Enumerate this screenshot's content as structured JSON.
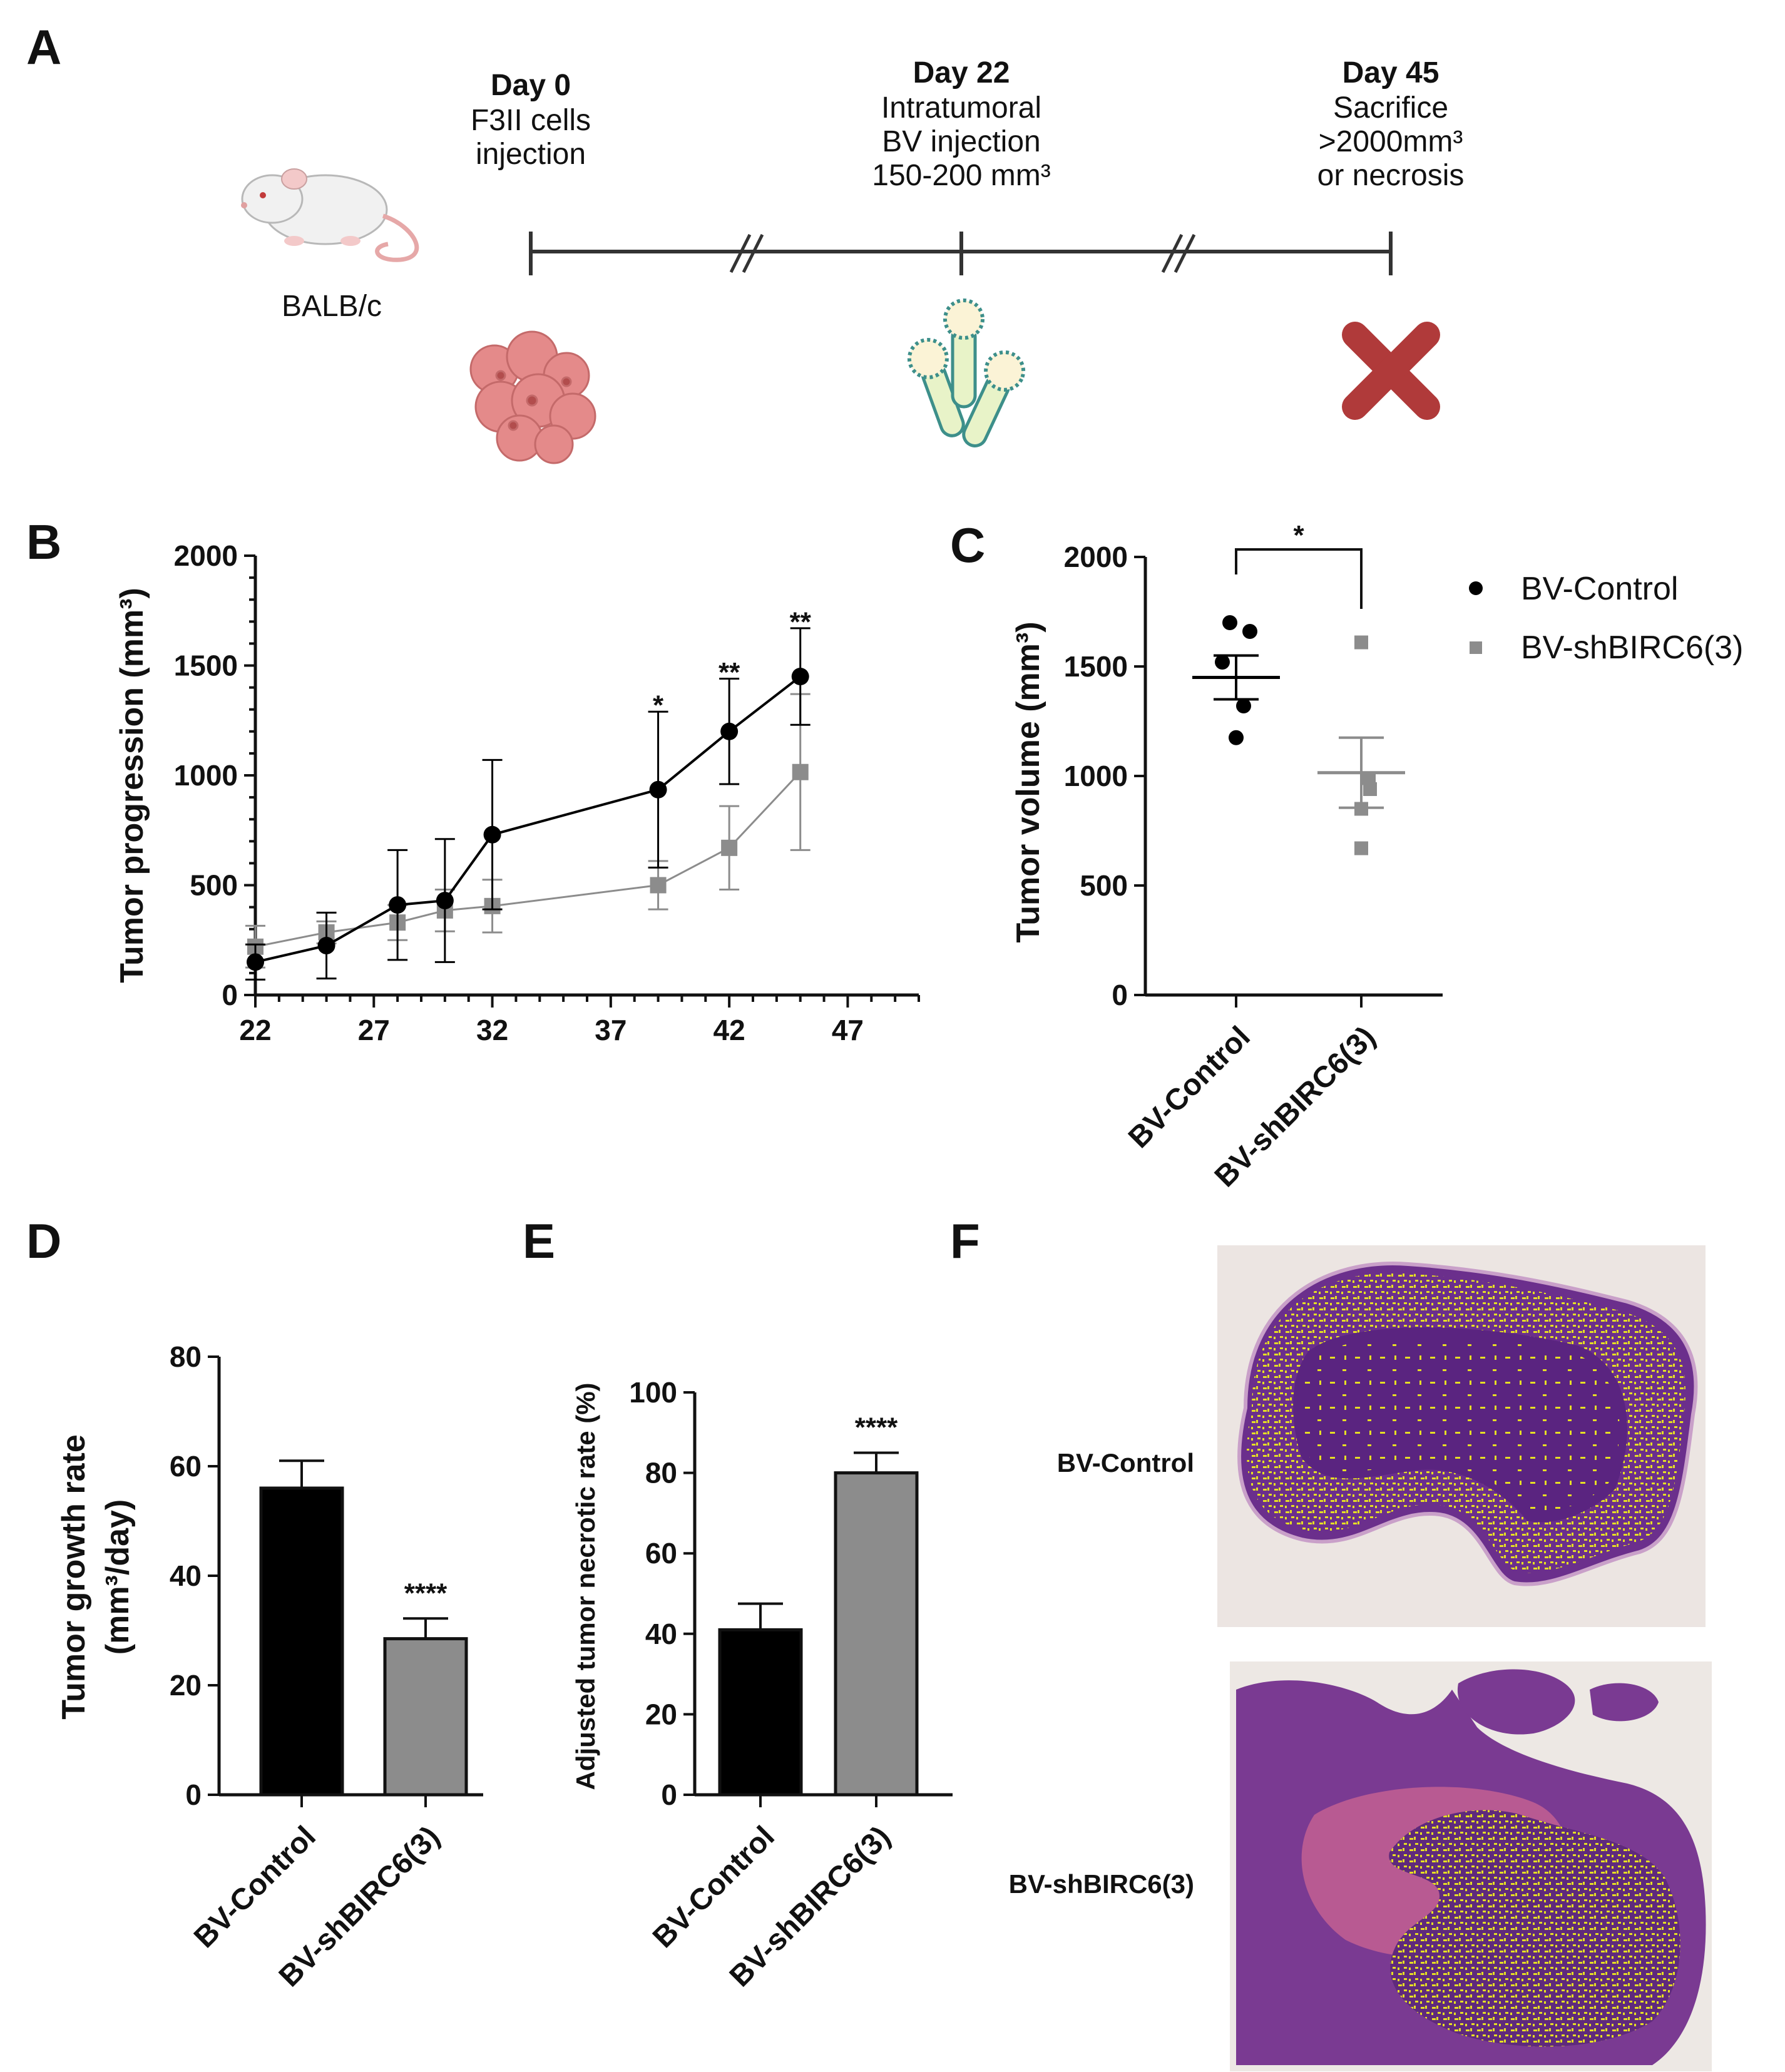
{
  "panel_labels": {
    "a": "A",
    "b": "B",
    "c": "C",
    "d": "D",
    "e": "E",
    "f": "F"
  },
  "timeline": {
    "mouse_label": "BALB/c",
    "events": [
      {
        "title": "Day 0",
        "lines": [
          "F3II cells",
          "injection"
        ]
      },
      {
        "title": "Day 22",
        "lines": [
          "Intratumoral",
          "BV injection",
          "150-200 mm³"
        ]
      },
      {
        "title": "Day 45",
        "lines": [
          "Sacrifice",
          ">2000mm³",
          "or necrosis"
        ]
      }
    ]
  },
  "legend": {
    "control": "BV-Control",
    "treated": "BV-shBIRC6(3)"
  },
  "colors": {
    "control": "#000000",
    "treated": "#8c8c8c",
    "tumor_cells": "#e48a8a",
    "cross": "#b03a3a",
    "stain": "#6b2f8c",
    "necrosis_overlay": "#e6df24"
  },
  "chart_data": [
    {
      "id": "B",
      "type": "line",
      "xlabel": "",
      "ylabel": "Tumor progression (mm³)",
      "xlim": [
        22,
        50
      ],
      "ylim": [
        0,
        2000
      ],
      "xticks": [
        "22",
        "27",
        "32",
        "37",
        "42",
        "47"
      ],
      "yticks": [
        "0",
        "500",
        "1000",
        "1500",
        "2000"
      ],
      "series": [
        {
          "name": "BV-Control",
          "x": [
            22,
            25,
            28,
            30,
            32,
            39,
            42,
            45
          ],
          "y": [
            150,
            225,
            410,
            430,
            730,
            935,
            1200,
            1450
          ],
          "err": [
            80,
            150,
            250,
            280,
            340,
            355,
            240,
            220
          ]
        },
        {
          "name": "BV-shBIRC6(3)",
          "x": [
            22,
            25,
            28,
            30,
            32,
            39,
            42,
            45
          ],
          "y": [
            220,
            285,
            330,
            385,
            405,
            500,
            670,
            1015
          ],
          "err": [
            95,
            50,
            80,
            95,
            120,
            110,
            190,
            355
          ]
        }
      ],
      "annotations": [
        {
          "x": 39,
          "y": 1300,
          "text": "*"
        },
        {
          "x": 42,
          "y": 1450,
          "text": "**"
        },
        {
          "x": 45,
          "y": 1680,
          "text": "**"
        }
      ]
    },
    {
      "id": "C",
      "type": "scatter",
      "ylabel": "Tumor volume (mm³)",
      "ylim": [
        0,
        2000
      ],
      "yticks": [
        "0",
        "500",
        "1000",
        "1500",
        "2000"
      ],
      "categories": [
        "BV-Control",
        "BV-shBIRC6(3)"
      ],
      "groups": [
        {
          "name": "BV-Control",
          "points": [
            1700,
            1660,
            1320,
            1520,
            1175
          ],
          "mean": 1450,
          "sem": 100
        },
        {
          "name": "BV-shBIRC6(3)",
          "points": [
            1610,
            990,
            940,
            850,
            670
          ],
          "mean": 1015,
          "sem": 160
        }
      ],
      "significance": "*"
    },
    {
      "id": "D",
      "type": "bar",
      "ylabel": "Tumor growth rate",
      "ylabel_unit": "(mm³/day)",
      "ylim": [
        0,
        80
      ],
      "yticks": [
        "0",
        "20",
        "40",
        "60",
        "80"
      ],
      "categories": [
        "BV-Control",
        "BV-shBIRC6(3)"
      ],
      "values": [
        56,
        28.5
      ],
      "errors": [
        5,
        3.7
      ],
      "significance": [
        "",
        "****"
      ]
    },
    {
      "id": "E",
      "type": "bar",
      "ylabel": "Adjusted tumor necrotic rate (%)",
      "ylim": [
        0,
        100
      ],
      "yticks": [
        "0",
        "20",
        "40",
        "60",
        "80",
        "100"
      ],
      "categories": [
        "BV-Control",
        "BV-shBIRC6(3)"
      ],
      "values": [
        41,
        80
      ],
      "errors": [
        6.5,
        5
      ],
      "significance": [
        "",
        "****"
      ]
    }
  ],
  "histology": {
    "top_label": "BV-Control",
    "bottom_label": "BV-shBIRC6(3)"
  }
}
